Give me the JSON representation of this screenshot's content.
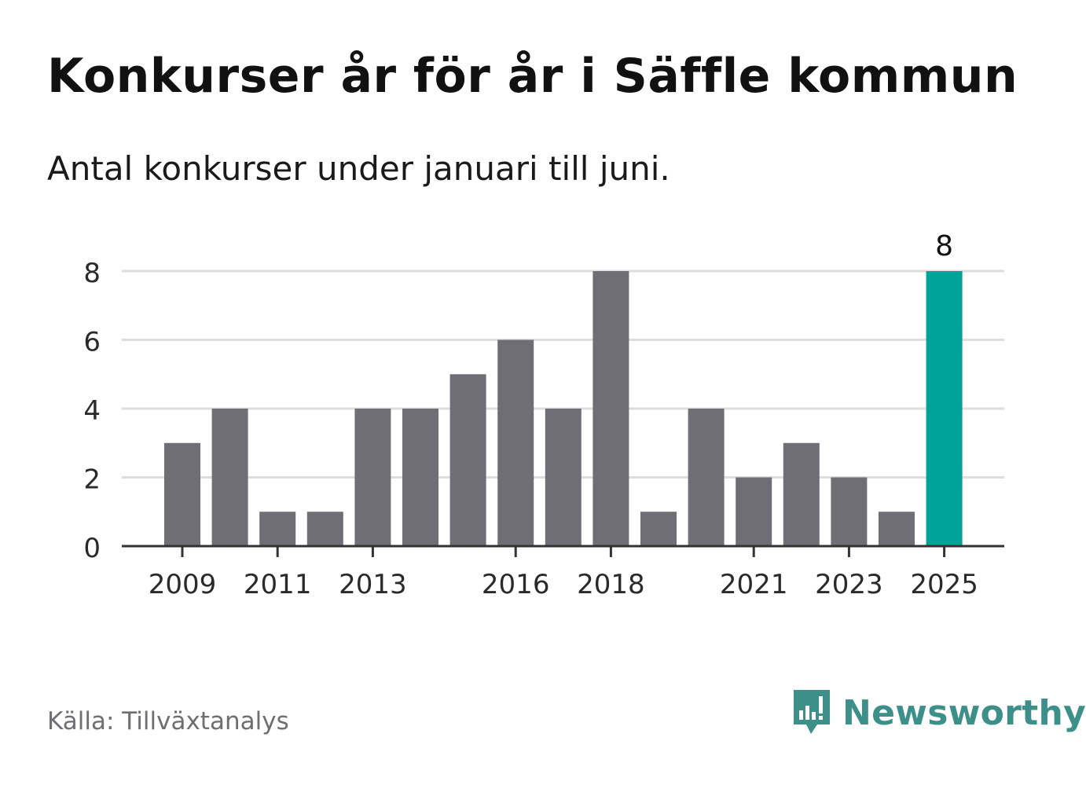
{
  "title": "Konkurser år för år i Säffle kommun",
  "subtitle": "Antal konkurser under januari till juni.",
  "source": "Källa: Tillväxtanalys",
  "brand": {
    "name": "Newsworthy",
    "icon": "newsworthy-logo-icon"
  },
  "colors": {
    "bar": "#6f6e75",
    "highlight": "#00a398",
    "grid": "#dddddd",
    "axis": "#333333",
    "brand": "#3d8f8a"
  },
  "chart_data": {
    "type": "bar",
    "categories": [
      "2009",
      "2010",
      "2011",
      "2012",
      "2013",
      "2014",
      "2015",
      "2016",
      "2017",
      "2018",
      "2019",
      "2020",
      "2021",
      "2022",
      "2023",
      "2024",
      "2025"
    ],
    "values": [
      3,
      4,
      1,
      1,
      4,
      4,
      5,
      6,
      4,
      8,
      1,
      4,
      2,
      3,
      2,
      1,
      8
    ],
    "highlight_category": "2025",
    "highlight_label": "8",
    "x_tick_labels": [
      "2009",
      "2011",
      "2013",
      "2016",
      "2018",
      "2021",
      "2023",
      "2025"
    ],
    "y_ticks": [
      0,
      2,
      4,
      6,
      8
    ],
    "ylim": [
      0,
      8
    ],
    "xlabel": "",
    "ylabel": "",
    "grid": true
  }
}
